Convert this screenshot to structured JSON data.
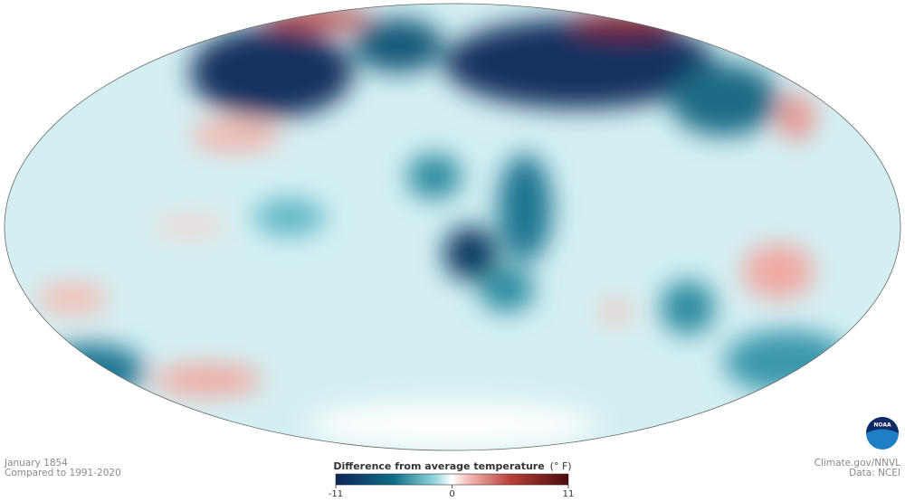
{
  "map": {
    "date": "January 1854",
    "baseline": "Compared to 1991-2020"
  },
  "colorbar": {
    "title": "Difference from average temperature",
    "unit": "(° F)",
    "lim": [
      -11,
      11
    ],
    "ticks": [
      -11,
      0,
      11
    ]
  },
  "credits": {
    "source": "Climate.gov/NNVL",
    "data": "Data: NCEI",
    "logo": "NOAA"
  }
}
